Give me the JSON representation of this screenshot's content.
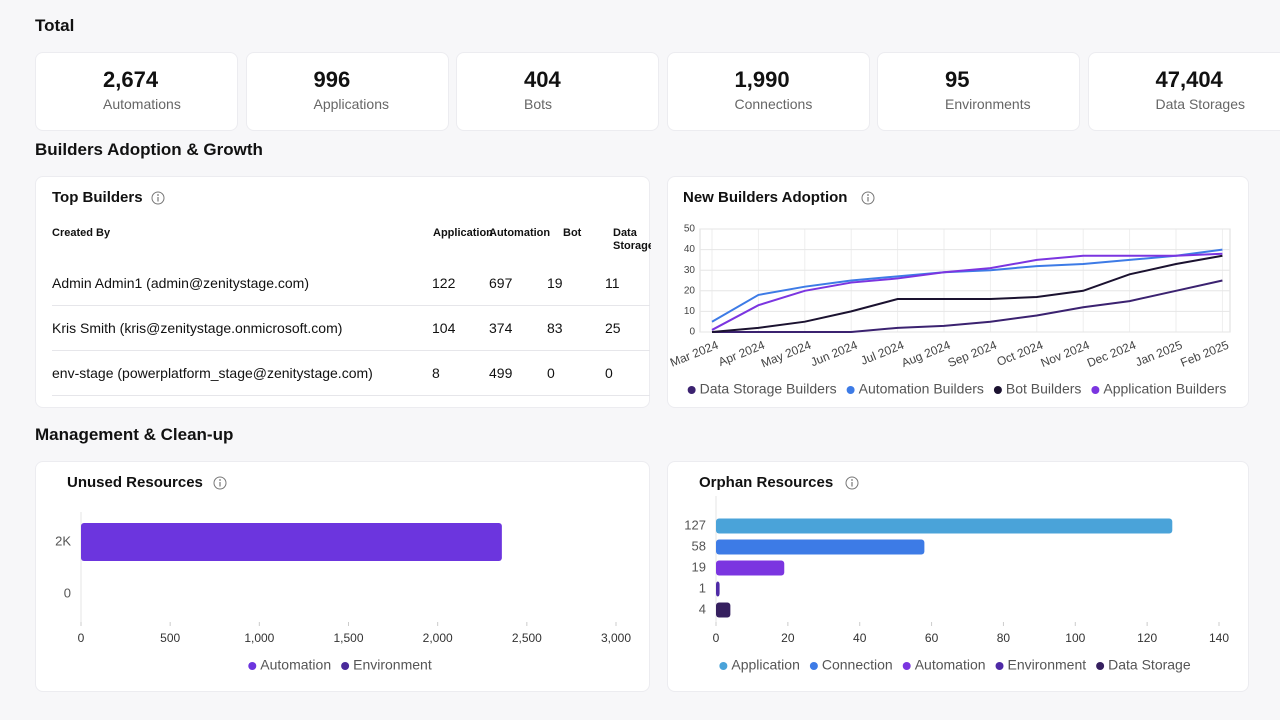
{
  "sections": {
    "total": "Total",
    "builders": "Builders Adoption & Growth",
    "management": "Management & Clean-up"
  },
  "stats": [
    {
      "value": "2,674",
      "label": "Automations"
    },
    {
      "value": "996",
      "label": "Applications"
    },
    {
      "value": "404",
      "label": "Bots"
    },
    {
      "value": "1,990",
      "label": "Connections"
    },
    {
      "value": "95",
      "label": "Environments"
    },
    {
      "value": "47,404",
      "label": "Data Storages"
    }
  ],
  "top_builders": {
    "title": "Top Builders",
    "columns": [
      "Created By",
      "Application",
      "Automation",
      "Bot",
      "Data Storage"
    ],
    "rows": [
      [
        "Admin Admin1 (admin@zenitystage.com)",
        122,
        697,
        19,
        11
      ],
      [
        "Kris Smith (kris@zenitystage.onmicrosoft.com)",
        104,
        374,
        83,
        25
      ],
      [
        "env-stage (powerplatform_stage@zenitystage.com)",
        8,
        499,
        0,
        0
      ]
    ]
  },
  "chart_data": [
    {
      "type": "line",
      "title": "New Builders Adoption",
      "categories": [
        "Mar 2024",
        "Apr 2024",
        "May 2024",
        "Jun 2024",
        "Jul 2024",
        "Aug 2024",
        "Sep 2024",
        "Oct 2024",
        "Nov 2024",
        "Dec 2024",
        "Jan 2025",
        "Feb 2025"
      ],
      "series": [
        {
          "name": "Data Storage Builders",
          "color": "#3b2270",
          "values": [
            0,
            0,
            0,
            0,
            2,
            3,
            5,
            8,
            12,
            15,
            20,
            25
          ]
        },
        {
          "name": "Automation Builders",
          "color": "#3d7be6",
          "values": [
            5,
            18,
            22,
            25,
            27,
            29,
            30,
            32,
            33,
            35,
            37,
            40
          ]
        },
        {
          "name": "Bot Builders",
          "color": "#1b1230",
          "values": [
            0,
            2,
            5,
            10,
            16,
            16,
            16,
            17,
            20,
            28,
            33,
            37
          ]
        },
        {
          "name": "Application Builders",
          "color": "#7b35e0",
          "values": [
            1,
            13,
            20,
            24,
            26,
            29,
            31,
            35,
            37,
            37,
            37,
            38
          ]
        }
      ],
      "ylim": [
        0,
        50
      ],
      "yticks": [
        0,
        10,
        20,
        30,
        40,
        50
      ],
      "grid": true,
      "legend": "bottom"
    },
    {
      "type": "hbar",
      "title": "Unused Resources",
      "categories": [
        "2K",
        "0"
      ],
      "series": [
        {
          "name": "Automation",
          "color": "#6c35de",
          "values": [
            2360,
            null
          ]
        },
        {
          "name": "Environment",
          "color": "#4a2a9a",
          "values": [
            null,
            0
          ]
        }
      ],
      "xlim": [
        0,
        3000
      ],
      "xticks": [
        0,
        500,
        {
          "value": 1000,
          "label": "1,000"
        },
        {
          "value": 1500,
          "label": "1,500"
        },
        {
          "value": 2000,
          "label": "2,000"
        },
        {
          "value": 2500,
          "label": "2,500"
        },
        {
          "value": 3000,
          "label": "3,000"
        }
      ],
      "legend": "bottom"
    },
    {
      "type": "hbar",
      "title": "Orphan Resources",
      "categories": [
        "127",
        "58",
        "19",
        "1",
        "4"
      ],
      "series": [
        {
          "name": "Application",
          "color": "#4aa3d9",
          "values": [
            127,
            null,
            null,
            null,
            null
          ]
        },
        {
          "name": "Connection",
          "color": "#3d7be6",
          "values": [
            null,
            58,
            null,
            null,
            null
          ]
        },
        {
          "name": "Automation",
          "color": "#7b35e0",
          "values": [
            null,
            null,
            19,
            null,
            null
          ]
        },
        {
          "name": "Environment",
          "color": "#4e2aa6",
          "values": [
            null,
            null,
            null,
            1,
            null
          ]
        },
        {
          "name": "Data Storage",
          "color": "#36205f",
          "values": [
            null,
            null,
            null,
            null,
            4
          ]
        }
      ],
      "xlim": [
        0,
        140
      ],
      "xticks": [
        0,
        20,
        40,
        60,
        80,
        100,
        120,
        140
      ],
      "legend": "bottom"
    }
  ]
}
